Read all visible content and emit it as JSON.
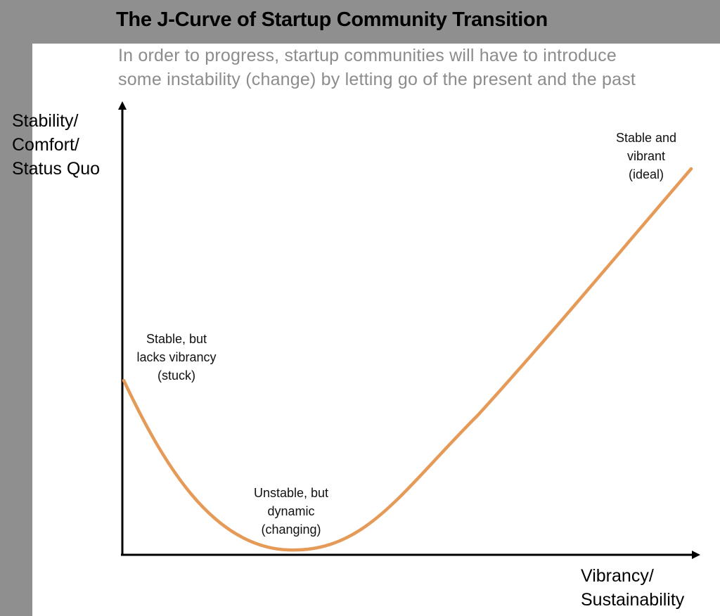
{
  "title": "The J-Curve of Startup Community Transition",
  "subtitle": {
    "line1": "In order to progress, startup communities will have to introduce",
    "line2": "some instability (change) by letting go of the present and the past"
  },
  "y_axis_label": {
    "line1": "Stability/",
    "line2": "Comfort/",
    "line3": "Status Quo"
  },
  "x_axis_label": {
    "line1": "Vibrancy/",
    "line2": "Sustainability"
  },
  "annotations": {
    "stuck": {
      "line1": "Stable, but",
      "line2": "lacks vibrancy",
      "line3": "(stuck)"
    },
    "changing": {
      "line1": "Unstable, but",
      "line2": "dynamic",
      "line3": "(changing)"
    },
    "ideal": {
      "line1": "Stable and",
      "line2": "vibrant",
      "line3": "(ideal)"
    }
  },
  "colors": {
    "curve": "#e59a58",
    "axis": "#000000",
    "subtitle": "#8c8c8c",
    "frame": "#8f8f8f"
  }
}
